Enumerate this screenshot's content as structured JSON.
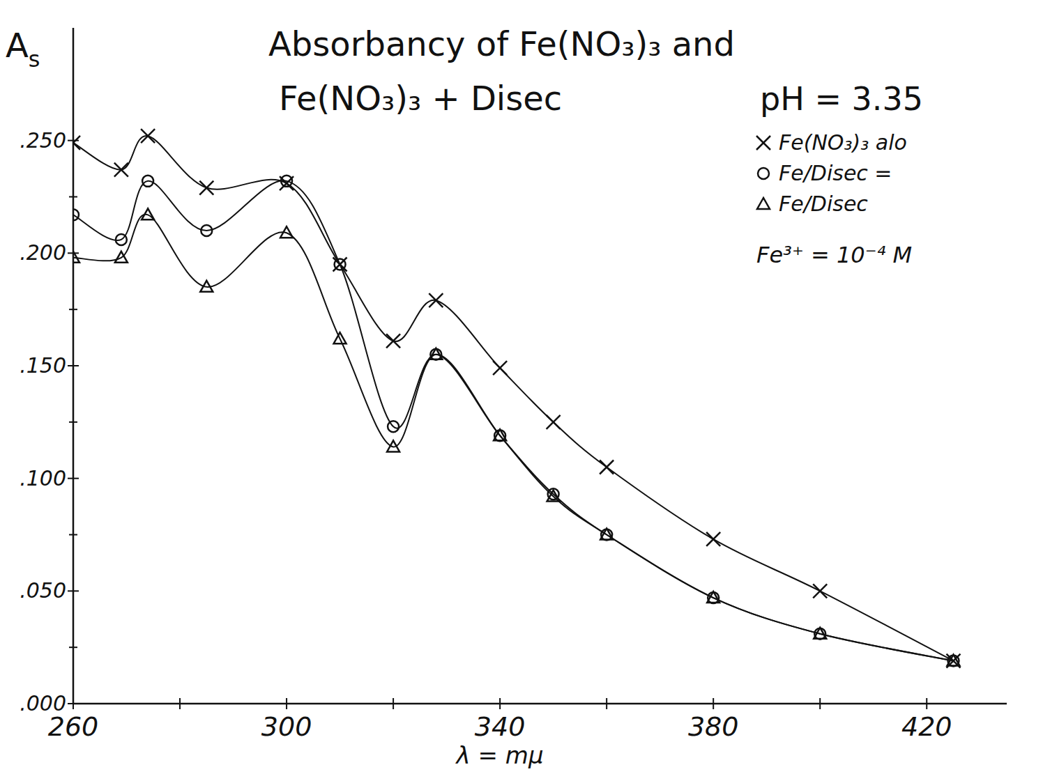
{
  "chart_data": {
    "type": "line",
    "title": "Absorbancy of Fe(NO₃)₃ and Fe(NO₃)₃ + Disec",
    "subtitle": "pH = 3.35",
    "annotations": [
      "Fe³⁺ = 10⁻⁴ M"
    ],
    "x_label": "λ = mμ",
    "y_label": "As",
    "x": [
      260,
      269,
      274,
      285,
      300,
      310,
      320,
      328,
      340,
      350,
      360,
      380,
      400,
      425
    ],
    "xlim": [
      260,
      435
    ],
    "xticks": [
      260,
      300,
      340,
      380,
      420
    ],
    "ylim": [
      0,
      0.3
    ],
    "yticks": [
      {
        "value": 0,
        "label": ".000"
      },
      {
        "value": 0.05,
        "label": ".050"
      },
      {
        "value": 0.1,
        "label": ".100"
      },
      {
        "value": 0.15,
        "label": ".150"
      },
      {
        "value": 0.2,
        "label": ".200"
      },
      {
        "value": 0.25,
        "label": ".250"
      }
    ],
    "grid": false,
    "legend": "top-right",
    "series": [
      {
        "name": "Fe(NO₃)₃ alo",
        "color": "#111111",
        "marker": "x",
        "line_style": "solid",
        "values": [
          0.249,
          0.237,
          0.252,
          0.229,
          0.231,
          0.195,
          0.161,
          0.179,
          0.149,
          0.125,
          0.105,
          0.073,
          0.05,
          0.019
        ]
      },
      {
        "name": "Fe/Disec =",
        "color": "#111111",
        "marker": "circle",
        "line_style": "solid",
        "values": [
          0.217,
          0.206,
          0.232,
          0.21,
          0.232,
          0.195,
          0.123,
          0.155,
          0.119,
          0.093,
          0.075,
          0.047,
          0.031,
          0.019
        ]
      },
      {
        "name": "Fe/Disec",
        "color": "#111111",
        "marker": "triangle",
        "line_style": "solid",
        "values": [
          0.198,
          0.198,
          0.217,
          0.185,
          0.209,
          0.162,
          0.114,
          0.155,
          0.119,
          0.092,
          0.075,
          0.047,
          0.031,
          0.019
        ]
      }
    ]
  }
}
